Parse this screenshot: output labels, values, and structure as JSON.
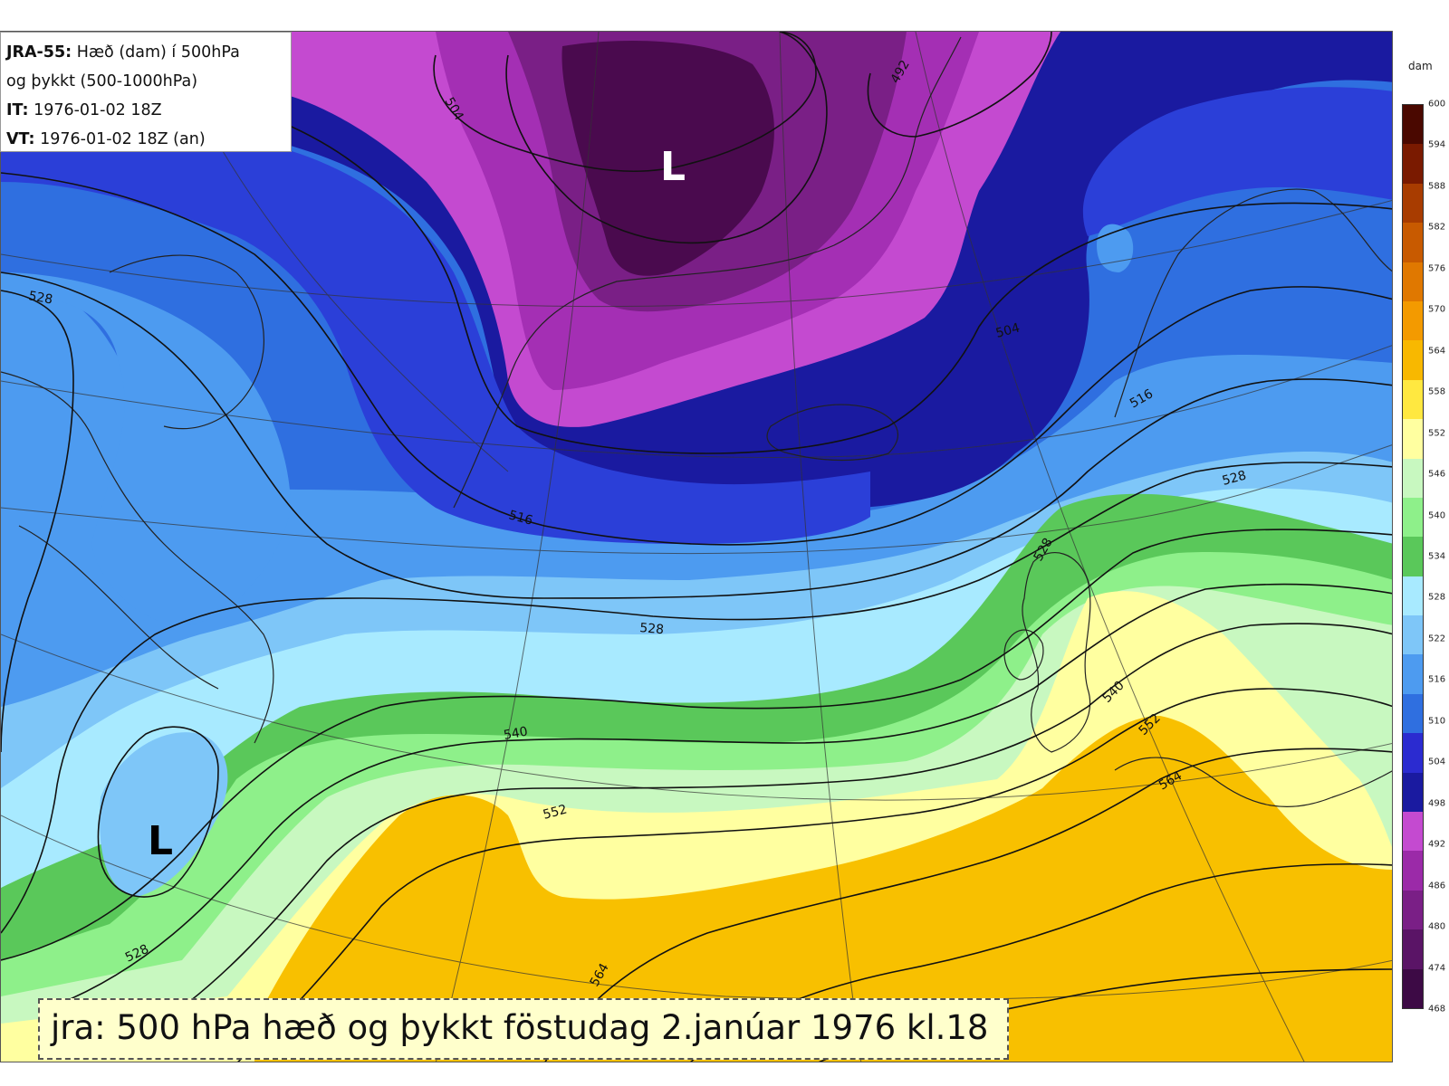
{
  "info": {
    "model": "JRA-55:",
    "line1_rest": " Hæð (dam) í 500hPa",
    "line2": "og þykkt (500-1000hPa)",
    "it_label": "IT:",
    "it_value": " 1976-01-02 18Z",
    "vt_label": "VT:",
    "vt_value": " 1976-01-02 18Z (an)"
  },
  "caption": "jra: 500 hPa hæð og þykkt föstudag 2.janúar 1976 kl.18",
  "legend": {
    "unit": "dam",
    "ticks": [
      "468",
      "474",
      "480",
      "486",
      "492",
      "498",
      "504",
      "510",
      "516",
      "522",
      "528",
      "534",
      "540",
      "546",
      "552",
      "558",
      "564",
      "570",
      "576",
      "582",
      "588",
      "594",
      "600"
    ],
    "colors": [
      "#3d0a45",
      "#5a1466",
      "#7a1f86",
      "#9b2aa8",
      "#c44ad0",
      "#1a1aa0",
      "#2b2bd0",
      "#2f6fe0",
      "#4d9bf0",
      "#7ec6f8",
      "#a8eaff",
      "#5ac85a",
      "#8ef08a",
      "#c8f8c0",
      "#ffffa0",
      "#ffe840",
      "#f8b800",
      "#f39a00",
      "#e07800",
      "#c85a00",
      "#a83c00",
      "#7a1a00",
      "#4a0800"
    ]
  },
  "map": {
    "lows": [
      "L",
      "L"
    ],
    "contour_labels": [
      "504",
      "492",
      "528",
      "504",
      "516",
      "516",
      "528",
      "528",
      "540",
      "552",
      "528",
      "540",
      "552",
      "564",
      "564",
      "528"
    ],
    "colors": {
      "purple_dark": "#4a0a4e",
      "purple_mid": "#7a1f86",
      "purple": "#a42fb4",
      "magenta": "#c44ad0",
      "navy": "#1a1aa0",
      "blue": "#2b3fd8",
      "royal": "#2f6fe0",
      "sky": "#4d9bf0",
      "light_sky": "#7ec6f8",
      "cyan": "#a8eaff",
      "green": "#5ac85a",
      "light_green": "#8ef08a",
      "pale_green": "#c8f8c0",
      "yellow": "#ffffa0",
      "amber": "#f8c000",
      "contour": "#111111",
      "coast": "#222222"
    }
  }
}
